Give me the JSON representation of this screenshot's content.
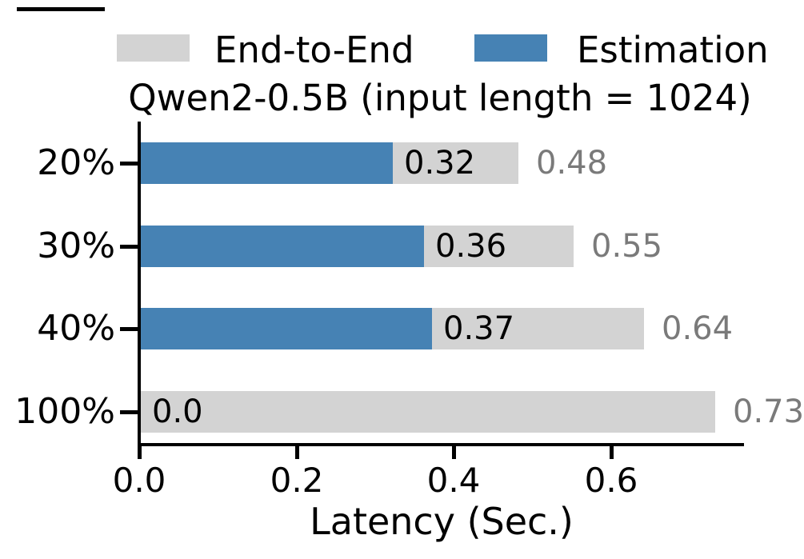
{
  "chart_data": {
    "type": "bar",
    "orientation": "horizontal",
    "title": "Qwen2-0.5B (input length = 1024)",
    "xlabel": "Latency (Sec.)",
    "categories": [
      "20%",
      "30%",
      "40%",
      "100%"
    ],
    "series": [
      {
        "name": "End-to-End",
        "color": "#d3d3d3",
        "values": [
          0.48,
          0.55,
          0.64,
          0.73
        ]
      },
      {
        "name": "Estimation",
        "color": "#4682b4",
        "values": [
          0.32,
          0.36,
          0.37,
          0.0
        ]
      }
    ],
    "bar_labels_inside": [
      "0.32",
      "0.36",
      "0.37",
      "0.0"
    ],
    "bar_labels_outside": [
      "0.48",
      "0.55",
      "0.64",
      "0.73"
    ],
    "inside_label_color": "#000000",
    "outside_label_color": "#7a7a7a",
    "x_ticks": [
      "0.0",
      "0.2",
      "0.4",
      "0.6"
    ],
    "x_tick_values": [
      0.0,
      0.2,
      0.4,
      0.6
    ],
    "xlim": [
      0.0,
      0.77
    ],
    "grid": false,
    "legend_position": "top",
    "axis_color": "#000000"
  }
}
